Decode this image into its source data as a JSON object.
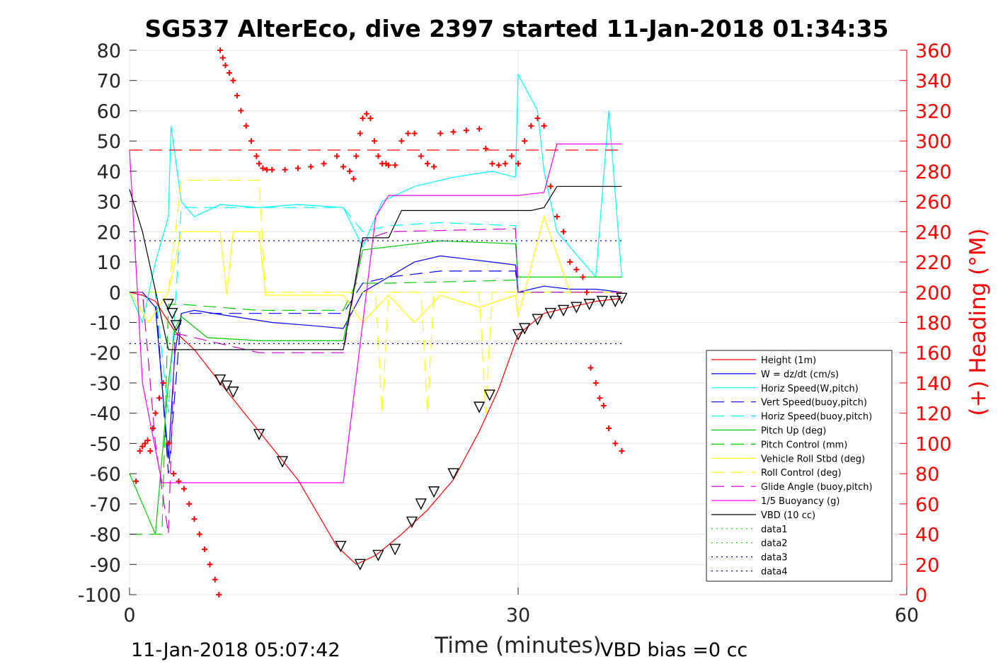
{
  "chart_data": {
    "type": "line",
    "title": "SG537 AlterEco, dive 2397 started 11-Jan-2018 01:34:35",
    "xlabel": "Time (minutes)",
    "ylabel_right": "(+) Heading (°M)",
    "xlim": [
      0,
      60
    ],
    "ylim_left": [
      -100,
      80
    ],
    "ylim_right": [
      0,
      360
    ],
    "x_ticks": [
      "0",
      "30",
      "60"
    ],
    "y_ticks_left": [
      "80",
      "70",
      "60",
      "50",
      "40",
      "30",
      "20",
      "10",
      "0",
      "-10",
      "-20",
      "-30",
      "-40",
      "-50",
      "-60",
      "-70",
      "-80",
      "-90",
      "-100"
    ],
    "y_ticks_right": [
      "360",
      "340",
      "320",
      "300",
      "280",
      "260",
      "240",
      "220",
      "200",
      "180",
      "160",
      "140",
      "120",
      "100",
      "80",
      "60",
      "40",
      "20",
      "0"
    ],
    "footer_left": "11-Jan-2018 05:07:42",
    "footer_right": "VBD bias =0 cc",
    "legend_position": "lower-right",
    "series": [
      {
        "name": "Height (1m)",
        "color": "#ff0000",
        "style": "solid",
        "x": [
          0,
          1,
          2,
          3.5,
          5,
          7,
          10,
          13,
          16,
          17.5,
          19,
          21,
          23,
          25,
          27,
          28.5,
          30,
          32,
          34,
          35,
          36,
          37,
          38
        ],
        "y": [
          0,
          -1,
          -3,
          -13,
          -19,
          -30,
          -46,
          -62,
          -84,
          -90,
          -87,
          -80,
          -72,
          -62,
          -46,
          -32,
          -14,
          -7,
          -5,
          -4,
          -3,
          -2.5,
          -2
        ]
      },
      {
        "name": "W = dz/dt (cm/s)",
        "color": "#0000ff",
        "style": "solid",
        "x": [
          0,
          1,
          2,
          3,
          3.5,
          4,
          5,
          8,
          11,
          14,
          16.5,
          18,
          20,
          22,
          24,
          26,
          28,
          29.8,
          30,
          32,
          34,
          36,
          38
        ],
        "y": [
          0,
          0,
          -5,
          -55,
          -20,
          -7,
          -6,
          -8,
          -10,
          -11,
          -12,
          0,
          5,
          10,
          12,
          11,
          10,
          9,
          0,
          2,
          1,
          1,
          0
        ]
      },
      {
        "name": "Horiz Speed(W,pitch)",
        "color": "#00ffff",
        "style": "solid",
        "x": [
          0,
          1,
          2,
          3,
          3.2,
          4,
          5,
          7,
          10,
          13,
          16.5,
          18,
          19.5,
          22,
          25,
          28,
          29.8,
          30,
          31.5,
          32,
          33,
          34,
          35,
          36,
          37,
          38
        ],
        "y": [
          0,
          -10,
          10,
          25,
          55,
          30,
          25,
          29,
          28,
          29,
          28,
          15,
          30,
          35,
          38,
          40,
          38,
          72,
          60,
          40,
          20,
          15,
          10,
          5,
          60,
          5
        ]
      },
      {
        "name": "Vert Speed(buoy,pitch)",
        "color": "#0000ff",
        "style": "dashed",
        "x": [
          0,
          2,
          3,
          4,
          6,
          10,
          16.5,
          18,
          20,
          24,
          29.8,
          30,
          34,
          38
        ],
        "y": [
          0,
          0,
          -60,
          -7,
          -7,
          -7,
          -7,
          3,
          5,
          7,
          7,
          0,
          0,
          0
        ]
      },
      {
        "name": "Horiz Speed(buoy,pitch)",
        "color": "#00ffff",
        "style": "dashed",
        "x": [
          0,
          2,
          3,
          4,
          6,
          10,
          16.5,
          18,
          20,
          24,
          29.8,
          30,
          34,
          38
        ],
        "y": [
          0,
          0,
          -40,
          28,
          28,
          28,
          28,
          20,
          22,
          23,
          22,
          0,
          0,
          0
        ]
      },
      {
        "name": "Pitch Up (deg)",
        "color": "#00cc00",
        "style": "solid",
        "x": [
          0,
          1,
          2,
          3,
          3.5,
          4,
          6,
          10,
          14,
          16.5,
          18,
          20,
          24,
          29.8,
          30,
          34,
          38
        ],
        "y": [
          -60,
          -70,
          -80,
          -30,
          -12,
          -8,
          -15,
          -16,
          -16,
          -16,
          14,
          15,
          17,
          16,
          5,
          5,
          5
        ]
      },
      {
        "name": "Pitch Control (mm)",
        "color": "#00cc00",
        "style": "dashed",
        "x": [
          0,
          1,
          2,
          2.5,
          3,
          4,
          10,
          16.5,
          17.5,
          20,
          29.8,
          30,
          38
        ],
        "y": [
          -80,
          -80,
          -80,
          -80,
          -4,
          -4,
          -6,
          -6,
          3,
          3,
          4,
          0,
          0
        ]
      },
      {
        "name": "Vehicle Roll Stbd (deg)",
        "color": "#ffff00",
        "style": "solid",
        "x": [
          0,
          1.5,
          3,
          4,
          7,
          7.5,
          8,
          10,
          10.5,
          16.5,
          18,
          20,
          22,
          24,
          27,
          29.8,
          30,
          32,
          34,
          38
        ],
        "y": [
          0,
          -10,
          0,
          20,
          20,
          -1,
          20,
          20,
          -1,
          -1,
          -10,
          -1,
          -10,
          -1,
          -5,
          -1,
          -8,
          25,
          0,
          0
        ]
      },
      {
        "name": "Roll Control (deg)",
        "color": "#ffff00",
        "style": "dashed",
        "x": [
          0,
          3,
          4,
          10,
          10.5,
          16.5,
          19,
          19.5,
          20,
          22.5,
          23,
          23.5,
          27,
          27.5,
          28,
          29.8,
          30,
          38
        ],
        "y": [
          0,
          0,
          37,
          37,
          0,
          0,
          0,
          -40,
          0,
          0,
          -40,
          0,
          0,
          -40,
          0,
          0,
          0,
          0
        ]
      },
      {
        "name": "Glide Angle (buoy,pitch)",
        "color": "#cc00cc",
        "style": "dashed",
        "x": [
          0,
          1,
          2,
          3,
          3.5,
          4,
          10,
          16.5,
          18,
          20,
          29.8,
          30,
          38
        ],
        "y": [
          0,
          0,
          -50,
          -80,
          -14,
          -14,
          -20,
          -20,
          17,
          20,
          21,
          0,
          0
        ]
      },
      {
        "name": "1/5 Buoyancy (g)",
        "color": "#ff00ff",
        "style": "solid",
        "x": [
          0,
          1,
          2.5,
          3.5,
          16.5,
          19,
          20,
          25,
          28,
          30,
          32,
          33,
          35,
          38
        ],
        "y": [
          47,
          -30,
          -63,
          -63,
          -63,
          25,
          32,
          32,
          32,
          32,
          33,
          49,
          49,
          49
        ]
      },
      {
        "name": "VBD (10 cc)",
        "color": "#000000",
        "style": "solid",
        "x": [
          0,
          1,
          3,
          16.5,
          18,
          20,
          21,
          30,
          31,
          32,
          33,
          34,
          38
        ],
        "y": [
          34,
          20,
          -19,
          -19,
          18,
          18,
          27,
          27,
          27,
          28,
          35,
          35,
          35
        ]
      },
      {
        "name": "data1",
        "color": "#00cc00",
        "style": "dotted",
        "x": [],
        "y": []
      },
      {
        "name": "data2",
        "color": "#00cc00",
        "style": "dotted",
        "x": [],
        "y": []
      },
      {
        "name": "data3",
        "color": "#0000aa",
        "style": "dotted",
        "x": [
          0,
          38
        ],
        "y": [
          17,
          17
        ]
      },
      {
        "name": "data4",
        "color": "#0000aa",
        "style": "dotted",
        "x": [
          0,
          38
        ],
        "y": [
          -17,
          -17
        ]
      }
    ],
    "reference_line": {
      "color": "#ff0000",
      "style": "dashed",
      "y": 47,
      "x": [
        0,
        38
      ]
    },
    "heading_points": {
      "color": "#ff0000",
      "axis": "right",
      "x": [
        0.5,
        0.8,
        1,
        1.2,
        1.4,
        1.6,
        1.8,
        2,
        2.3,
        2.6,
        3,
        3.4,
        3.8,
        4.2,
        4.6,
        5,
        5.4,
        5.8,
        6.2,
        6.6,
        6.9,
        7,
        7.2,
        7.4,
        7.7,
        8,
        8.3,
        8.6,
        9,
        9.4,
        9.8,
        10,
        10.3,
        10.6,
        11,
        12,
        13,
        14,
        15,
        16,
        16.5,
        17,
        17.3,
        17.5,
        17.8,
        18,
        18.3,
        18.6,
        18.9,
        19.2,
        19.5,
        19.8,
        20,
        20.5,
        21,
        21.5,
        22,
        22.5,
        23,
        23.5,
        24,
        25,
        26,
        27,
        27.5,
        28,
        28.5,
        29,
        29.5,
        30,
        30.5,
        31,
        31.5,
        32,
        32.5,
        33,
        33.5,
        34,
        34.5,
        35,
        35.3,
        35.6,
        36,
        36.3,
        36.6,
        37,
        37.5,
        38
      ],
      "y": [
        75,
        95,
        98,
        100,
        102,
        95,
        110,
        120,
        130,
        140,
        100,
        80,
        75,
        70,
        60,
        50,
        40,
        30,
        20,
        10,
        0,
        360,
        355,
        350,
        345,
        340,
        330,
        320,
        310,
        300,
        290,
        285,
        282,
        281,
        281,
        281,
        282,
        283,
        285,
        290,
        283,
        280,
        275,
        290,
        305,
        315,
        318,
        315,
        300,
        290,
        285,
        285,
        284,
        284,
        300,
        305,
        305,
        290,
        285,
        283,
        305,
        306,
        307,
        308,
        295,
        285,
        284,
        285,
        290,
        285,
        300,
        310,
        315,
        310,
        270,
        250,
        240,
        220,
        215,
        210,
        200,
        150,
        140,
        130,
        125,
        110,
        100,
        95
      ]
    },
    "triangle_markers": {
      "x": [
        3,
        3.3,
        3.6,
        7,
        7.5,
        8,
        10,
        11.8,
        16.3,
        17.8,
        19.2,
        20.5,
        21.8,
        22.5,
        23.5,
        25,
        27,
        27.8,
        30,
        30.5,
        31.5,
        32.5,
        33.5,
        34.5,
        35.5,
        36.5,
        37.5,
        38
      ],
      "y": [
        -4,
        -7,
        -11,
        -29,
        -31,
        -33,
        -47,
        -56,
        -84,
        -90,
        -87,
        -85,
        -76,
        -70,
        -66,
        -60,
        -38,
        -34,
        -14,
        -12,
        -9,
        -7,
        -6,
        -5,
        -4,
        -3,
        -3,
        -2
      ]
    }
  }
}
